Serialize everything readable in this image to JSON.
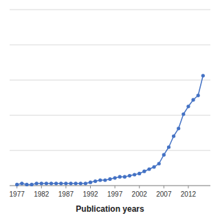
{
  "chart_data": {
    "type": "line",
    "xlabel": "Publication years",
    "x": [
      1977,
      1978,
      1979,
      1980,
      1981,
      1982,
      1983,
      1984,
      1985,
      1986,
      1987,
      1988,
      1989,
      1990,
      1991,
      1992,
      1993,
      1994,
      1995,
      1996,
      1997,
      1998,
      1999,
      2000,
      2001,
      2002,
      2003,
      2004,
      2005,
      2006,
      2007,
      2008,
      2009,
      2010,
      2011,
      2012,
      2013,
      2014,
      2015
    ],
    "values": [
      1,
      2,
      1,
      1,
      2,
      2,
      2,
      2,
      2,
      2,
      2,
      2,
      2,
      2,
      2,
      3,
      4,
      5,
      5,
      6,
      7,
      8,
      8,
      9,
      10,
      11,
      13,
      15,
      17,
      20,
      28,
      35,
      45,
      52,
      65,
      72,
      78,
      82,
      100
    ],
    "color": "#4472C4",
    "marker": "circle",
    "xlim": [
      1975.5,
      2016.5
    ],
    "xticks": [
      1977,
      1982,
      1987,
      1992,
      1997,
      2002,
      2007,
      2012
    ],
    "ylim": [
      0,
      160
    ],
    "yticks": [
      0,
      32,
      64,
      96,
      128,
      160
    ],
    "grid": true,
    "tick_labels": "x"
  }
}
